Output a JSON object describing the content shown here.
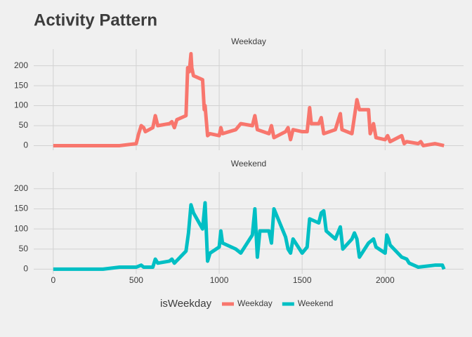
{
  "chart_data": {
    "type": "line",
    "title": "Activity Pattern",
    "legend_title": "isWeekday",
    "grid": true,
    "xlim": [
      -117.75,
      2472.75
    ],
    "xticks": [
      0,
      500,
      1000,
      1500,
      2000
    ],
    "ylim": [
      -11.5,
      241.5
    ],
    "yticks": [
      0,
      50,
      100,
      150,
      200
    ],
    "series": [
      {
        "name": "Weekday",
        "color": "#F8766D",
        "x": [
          0,
          100,
          200,
          300,
          400,
          500,
          515,
          530,
          545,
          555,
          600,
          615,
          630,
          700,
          715,
          730,
          745,
          800,
          810,
          820,
          830,
          835,
          845,
          900,
          910,
          915,
          930,
          945,
          1000,
          1010,
          1020,
          1100,
          1130,
          1200,
          1215,
          1230,
          1300,
          1315,
          1330,
          1400,
          1415,
          1430,
          1445,
          1500,
          1530,
          1545,
          1555,
          1600,
          1615,
          1630,
          1700,
          1715,
          1730,
          1740,
          1800,
          1830,
          1845,
          1900,
          1910,
          1930,
          1945,
          2000,
          2015,
          2030,
          2100,
          2115,
          2130,
          2200,
          2215,
          2230,
          2300,
          2355
        ],
        "values": [
          0,
          0,
          0,
          0,
          0,
          5,
          30,
          50,
          45,
          35,
          45,
          75,
          50,
          55,
          60,
          45,
          65,
          75,
          195,
          185,
          230,
          195,
          175,
          165,
          90,
          100,
          25,
          30,
          25,
          45,
          30,
          40,
          55,
          50,
          75,
          40,
          30,
          50,
          20,
          35,
          45,
          15,
          40,
          35,
          35,
          95,
          55,
          55,
          70,
          30,
          40,
          60,
          80,
          40,
          30,
          115,
          90,
          90,
          30,
          55,
          20,
          15,
          25,
          10,
          25,
          5,
          10,
          5,
          10,
          0,
          5,
          0
        ]
      },
      {
        "name": "Weekend",
        "color": "#00BFC4",
        "x": [
          0,
          100,
          200,
          300,
          400,
          500,
          530,
          545,
          600,
          615,
          630,
          700,
          715,
          730,
          800,
          815,
          830,
          845,
          900,
          915,
          930,
          945,
          1000,
          1010,
          1020,
          1100,
          1130,
          1200,
          1215,
          1230,
          1245,
          1300,
          1315,
          1330,
          1400,
          1415,
          1430,
          1445,
          1500,
          1530,
          1545,
          1600,
          1615,
          1630,
          1645,
          1700,
          1715,
          1730,
          1745,
          1800,
          1815,
          1830,
          1845,
          1900,
          1930,
          1945,
          2000,
          2010,
          2020,
          2030,
          2100,
          2130,
          2145,
          2200,
          2300,
          2345,
          2355
        ],
        "values": [
          0,
          0,
          0,
          0,
          5,
          5,
          10,
          5,
          5,
          25,
          15,
          20,
          25,
          15,
          45,
          90,
          160,
          140,
          100,
          165,
          20,
          40,
          55,
          95,
          65,
          50,
          40,
          85,
          150,
          30,
          95,
          95,
          65,
          150,
          80,
          50,
          40,
          75,
          40,
          55,
          125,
          115,
          140,
          145,
          95,
          75,
          90,
          105,
          50,
          75,
          90,
          75,
          30,
          65,
          75,
          55,
          40,
          85,
          75,
          60,
          30,
          25,
          15,
          5,
          10,
          10,
          0
        ]
      }
    ]
  }
}
